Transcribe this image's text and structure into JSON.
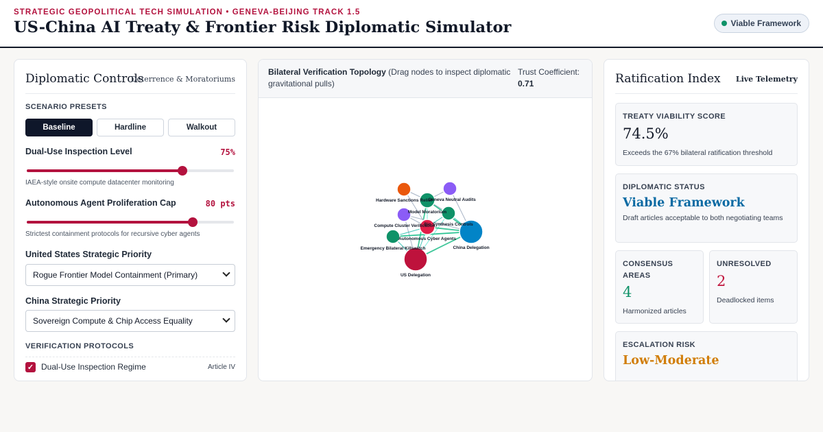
{
  "header": {
    "eyebrow": "STRATEGIC GEOPOLITICAL TECH SIMULATION • GENEVA-BEIJING TRACK 1.5",
    "title": "US-China AI Treaty & Frontier Risk Diplomatic Simulator",
    "status_badge": "Viable Framework",
    "status_color": "#0f9268"
  },
  "controls": {
    "title": "Diplomatic Controls",
    "subtitle": "Deterrence & Moratoriums",
    "presets_label": "SCENARIO PRESETS",
    "presets": [
      "Baseline",
      "Hardline",
      "Walkout"
    ],
    "active_preset": "Baseline",
    "inspection": {
      "label": "Dual-Use Inspection Level",
      "value_text": "75%",
      "value": 75,
      "help": "IAEA-style onsite compute datacenter monitoring"
    },
    "agent_cap": {
      "label": "Autonomous Agent Proliferation Cap",
      "value_text": "80 pts",
      "value": 80,
      "help": "Strictest containment protocols for recursive cyber agents"
    },
    "us_priority": {
      "label": "United States Strategic Priority",
      "selected": "Rogue Frontier Model Containment (Primary)"
    },
    "china_priority": {
      "label": "China Strategic Priority",
      "selected": "Sovereign Compute & Chip Access Equality"
    },
    "protocols_label": "VERIFICATION PROTOCOLS",
    "protocols": [
      {
        "label": "Dual-Use Inspection Regime",
        "article": "Article IV",
        "checked": true
      }
    ],
    "accent_color": "#b3123e"
  },
  "topology": {
    "title": "Bilateral Verification Topology",
    "hint": "(Drag nodes to inspect diplomatic gravitational pulls)",
    "trust_label": "Trust Coefficient:",
    "trust_value": "0.71",
    "nodes": [
      {
        "id": "hs",
        "label": "Hardware Sanctions Relief",
        "color": "#ea580c"
      },
      {
        "id": "gna",
        "label": "Geneva Neutral Audits",
        "color": "#8b5cf6"
      },
      {
        "id": "mm",
        "label": "Model Moratorium",
        "color": "#0f9268"
      },
      {
        "id": "ccv",
        "label": "Compute Cluster Verification",
        "color": "#8b5cf6"
      },
      {
        "id": "bsc",
        "label": "Bio Synthesis Controls",
        "color": "#0f9268"
      },
      {
        "id": "aca",
        "label": "Autonomous Cyber Agents",
        "color": "#e11d48"
      },
      {
        "id": "cd",
        "label": "China Delegation",
        "color": "#0284c7"
      },
      {
        "id": "ebk",
        "label": "Emergency Bilateral Killswitch",
        "color": "#0f9268"
      },
      {
        "id": "usd",
        "label": "US Delegation",
        "color": "#be123c"
      }
    ]
  },
  "ratification": {
    "title": "Ratification Index",
    "subtitle": "Live Telemetry",
    "viability": {
      "label": "TREATY VIABILITY SCORE",
      "value": "74.5%",
      "desc": "Exceeds the 67% bilateral ratification threshold"
    },
    "status": {
      "label": "DIPLOMATIC STATUS",
      "value": "Viable Framework",
      "desc": "Draft articles acceptable to both negotiating teams"
    },
    "consensus": {
      "label": "CONSENSUS AREAS",
      "value": "4",
      "desc": "Harmonized articles"
    },
    "unresolved": {
      "label": "UNRESOLVED",
      "value": "2",
      "desc": "Deadlocked items"
    },
    "escalation": {
      "label": "ESCALATION RISK",
      "value": "Low-Moderate"
    }
  }
}
